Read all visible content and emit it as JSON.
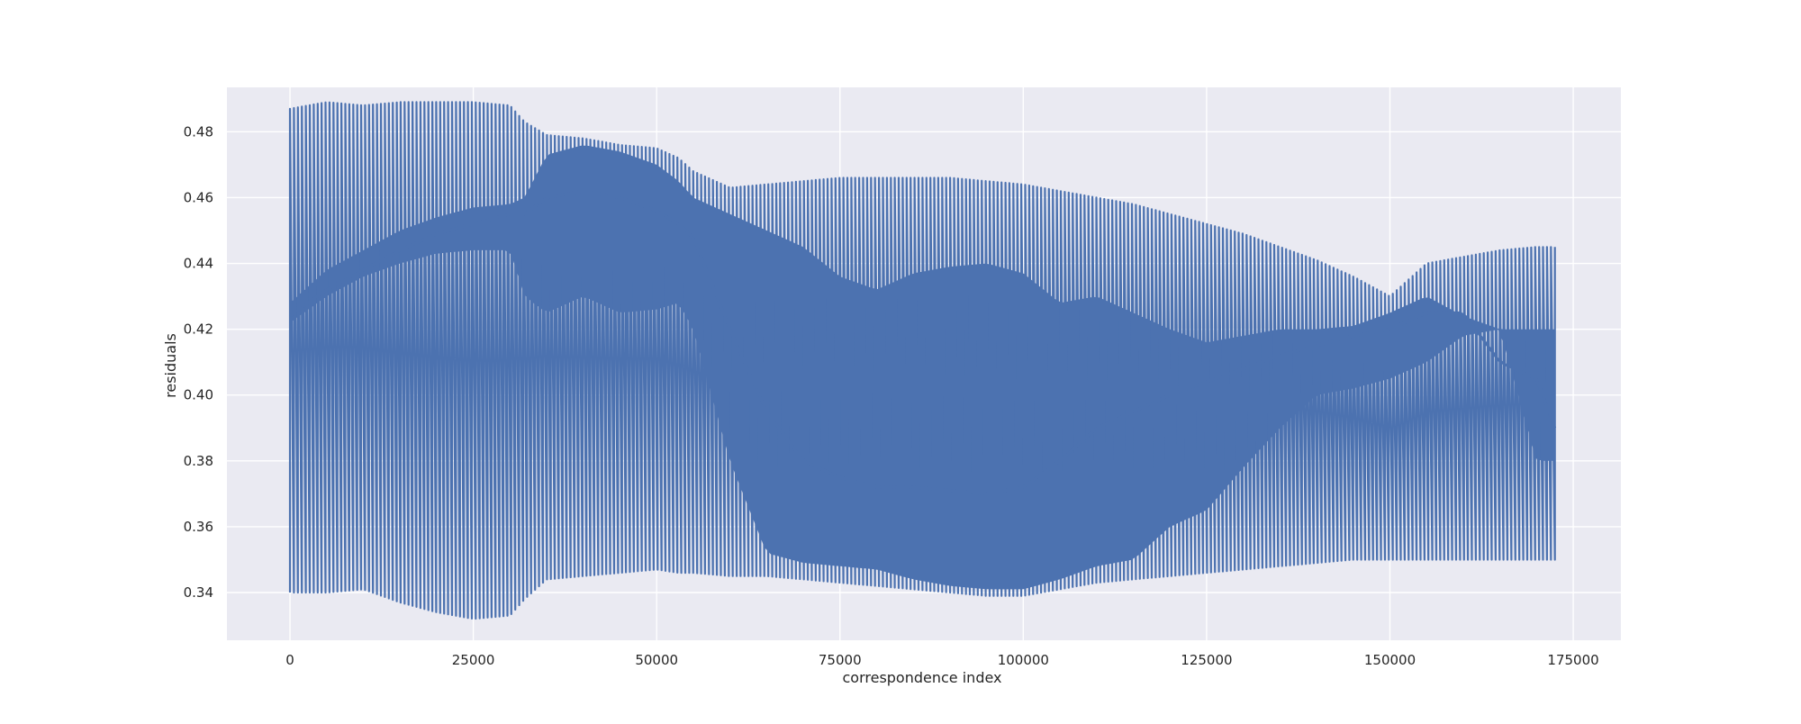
{
  "chart_data": {
    "type": "line",
    "title": "",
    "xlabel": "correspondence index",
    "ylabel": "residuals",
    "xlim": [
      -8600,
      181500
    ],
    "ylim": [
      0.3255,
      0.4935
    ],
    "x_ticks": [
      0,
      25000,
      50000,
      75000,
      100000,
      125000,
      150000,
      175000
    ],
    "x_tick_labels": [
      "0",
      "25000",
      "50000",
      "75000",
      "100000",
      "125000",
      "150000",
      "175000"
    ],
    "y_ticks": [
      0.34,
      0.36,
      0.38,
      0.4,
      0.42,
      0.44,
      0.46,
      0.48
    ],
    "y_tick_labels": [
      "0.34",
      "0.36",
      "0.38",
      "0.40",
      "0.42",
      "0.44",
      "0.46",
      "0.48"
    ],
    "grid": true,
    "legend": "none",
    "style": {
      "background": "#eaeaf2",
      "grid_color": "#ffffff",
      "line_color": "#4c72b0"
    },
    "series": [
      {
        "sampled": true,
        "x": [
          0,
          5000,
          10000,
          15000,
          20000,
          25000,
          30000,
          32000,
          35000,
          40000,
          45000,
          50000,
          53000,
          55000,
          60000,
          65000,
          70000,
          75000,
          80000,
          85000,
          90000,
          95000,
          100000,
          105000,
          110000,
          115000,
          120000,
          125000,
          130000,
          135000,
          140000,
          145000,
          150000,
          155000,
          160000,
          165000,
          170000,
          172500
        ],
        "upper": [
          0.487,
          0.489,
          0.488,
          0.489,
          0.489,
          0.489,
          0.488,
          0.483,
          0.479,
          0.478,
          0.476,
          0.475,
          0.472,
          0.468,
          0.463,
          0.464,
          0.465,
          0.466,
          0.466,
          0.466,
          0.466,
          0.465,
          0.464,
          0.462,
          0.46,
          0.458,
          0.455,
          0.452,
          0.449,
          0.445,
          0.441,
          0.436,
          0.43,
          0.44,
          0.442,
          0.444,
          0.445,
          0.445
        ],
        "lower": [
          0.34,
          0.34,
          0.341,
          0.337,
          0.334,
          0.332,
          0.333,
          0.338,
          0.344,
          0.345,
          0.346,
          0.347,
          0.346,
          0.346,
          0.345,
          0.345,
          0.344,
          0.343,
          0.342,
          0.341,
          0.34,
          0.339,
          0.339,
          0.341,
          0.343,
          0.344,
          0.345,
          0.346,
          0.347,
          0.348,
          0.349,
          0.35,
          0.35,
          0.35,
          0.35,
          0.35,
          0.35,
          0.35
        ],
        "mean": [
          0.424,
          0.432,
          0.438,
          0.444,
          0.449,
          0.452,
          0.455,
          0.455,
          0.46,
          0.462,
          0.46,
          0.456,
          0.452,
          0.448,
          0.42,
          0.395,
          0.38,
          0.375,
          0.372,
          0.372,
          0.371,
          0.37,
          0.372,
          0.38,
          0.39,
          0.395,
          0.4,
          0.404,
          0.408,
          0.412,
          0.415,
          0.418,
          0.42,
          0.425,
          0.425,
          0.41,
          0.405,
          0.39
        ],
        "dense_band_low": [
          0.422,
          0.43,
          0.436,
          0.44,
          0.443,
          0.444,
          0.444,
          0.43,
          0.425,
          0.43,
          0.425,
          0.426,
          0.428,
          0.42,
          0.38,
          0.352,
          0.349,
          0.348,
          0.347,
          0.344,
          0.342,
          0.341,
          0.341,
          0.344,
          0.348,
          0.35,
          0.36,
          0.365,
          0.378,
          0.39,
          0.4,
          0.402,
          0.405,
          0.41,
          0.418,
          0.42,
          0.38,
          0.38
        ],
        "dense_band_high": [
          0.428,
          0.438,
          0.444,
          0.45,
          0.454,
          0.457,
          0.458,
          0.46,
          0.473,
          0.476,
          0.474,
          0.47,
          0.465,
          0.46,
          0.455,
          0.45,
          0.445,
          0.436,
          0.432,
          0.437,
          0.439,
          0.44,
          0.437,
          0.428,
          0.43,
          0.425,
          0.42,
          0.416,
          0.418,
          0.42,
          0.42,
          0.421,
          0.425,
          0.43,
          0.424,
          0.42,
          0.42,
          0.42
        ]
      }
    ]
  }
}
